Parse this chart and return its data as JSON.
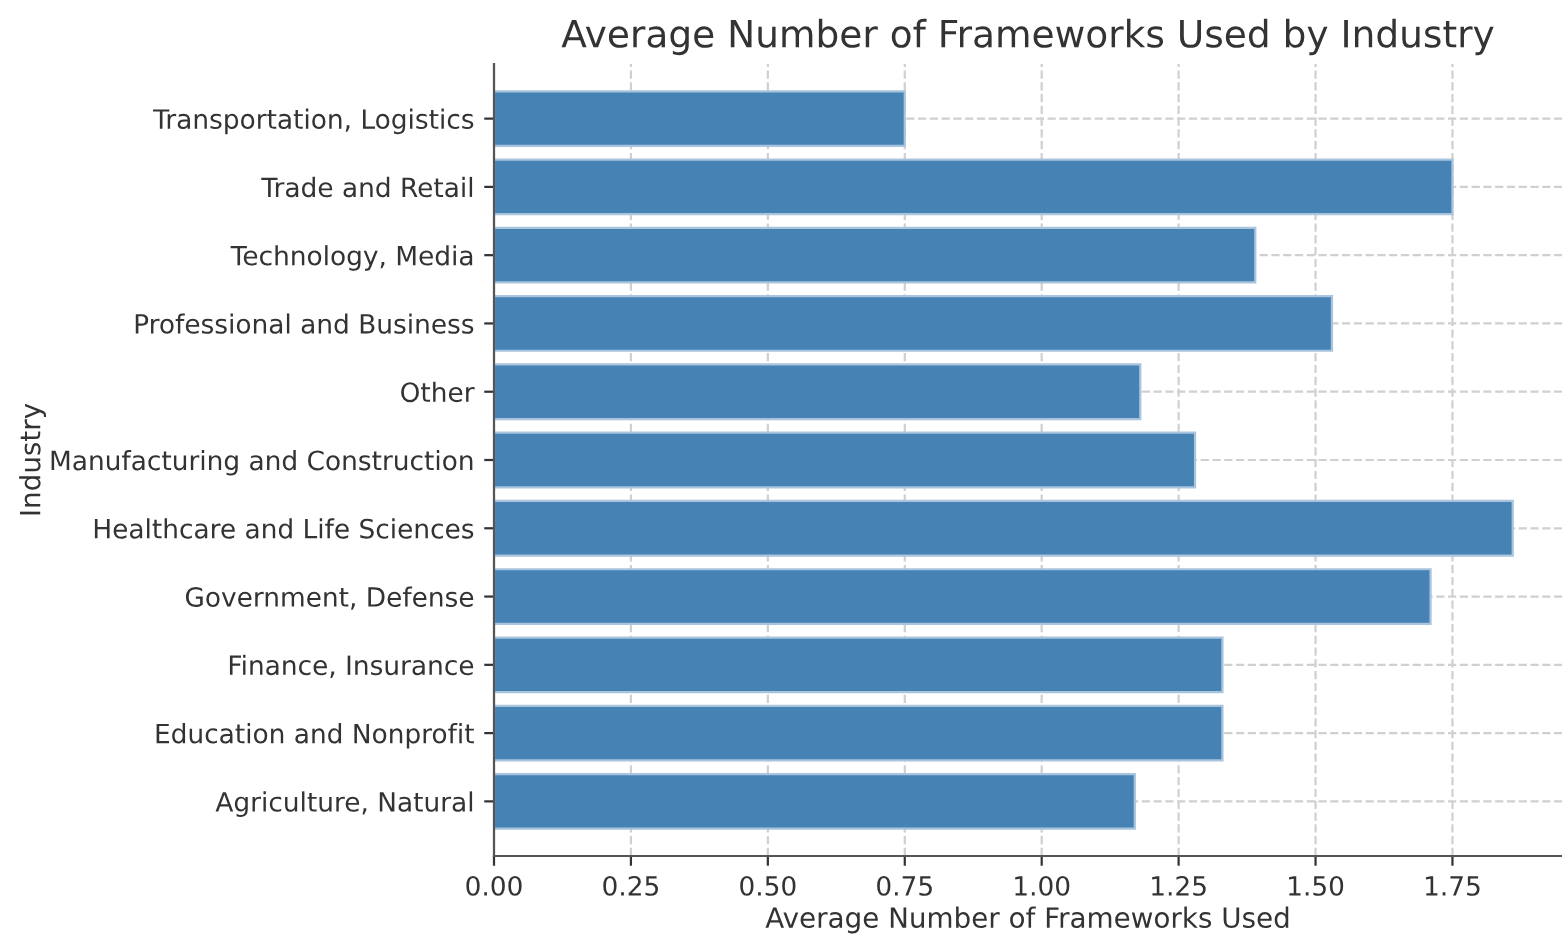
{
  "chart_data": {
    "type": "bar",
    "orientation": "horizontal",
    "title": "Average Number of Frameworks Used by Industry",
    "xlabel": "Average Number of Frameworks Used",
    "ylabel": "Industry",
    "categories": [
      "Transportation, Logistics",
      "Trade and Retail",
      "Technology, Media",
      "Professional and Business",
      "Other",
      "Manufacturing and Construction",
      "Healthcare and Life Sciences",
      "Government, Defense",
      "Finance, Insurance",
      "Education and Nonprofit",
      "Agriculture, Natural"
    ],
    "values": [
      0.75,
      1.75,
      1.39,
      1.53,
      1.18,
      1.28,
      1.86,
      1.71,
      1.33,
      1.33,
      1.17
    ],
    "color": "#4682b4",
    "xlim": [
      0,
      1.95
    ],
    "xticks": [
      {
        "value": 0,
        "label": "0.00"
      },
      {
        "value": 0.25,
        "label": "0.25"
      },
      {
        "value": 0.5,
        "label": "0.50"
      },
      {
        "value": 0.75,
        "label": "0.75"
      },
      {
        "value": 1,
        "label": "1.00"
      },
      {
        "value": 1.25,
        "label": "1.25"
      },
      {
        "value": 1.5,
        "label": "1.50"
      },
      {
        "value": 1.75,
        "label": "1.75"
      }
    ],
    "grid": true,
    "line_style": "dashed"
  }
}
